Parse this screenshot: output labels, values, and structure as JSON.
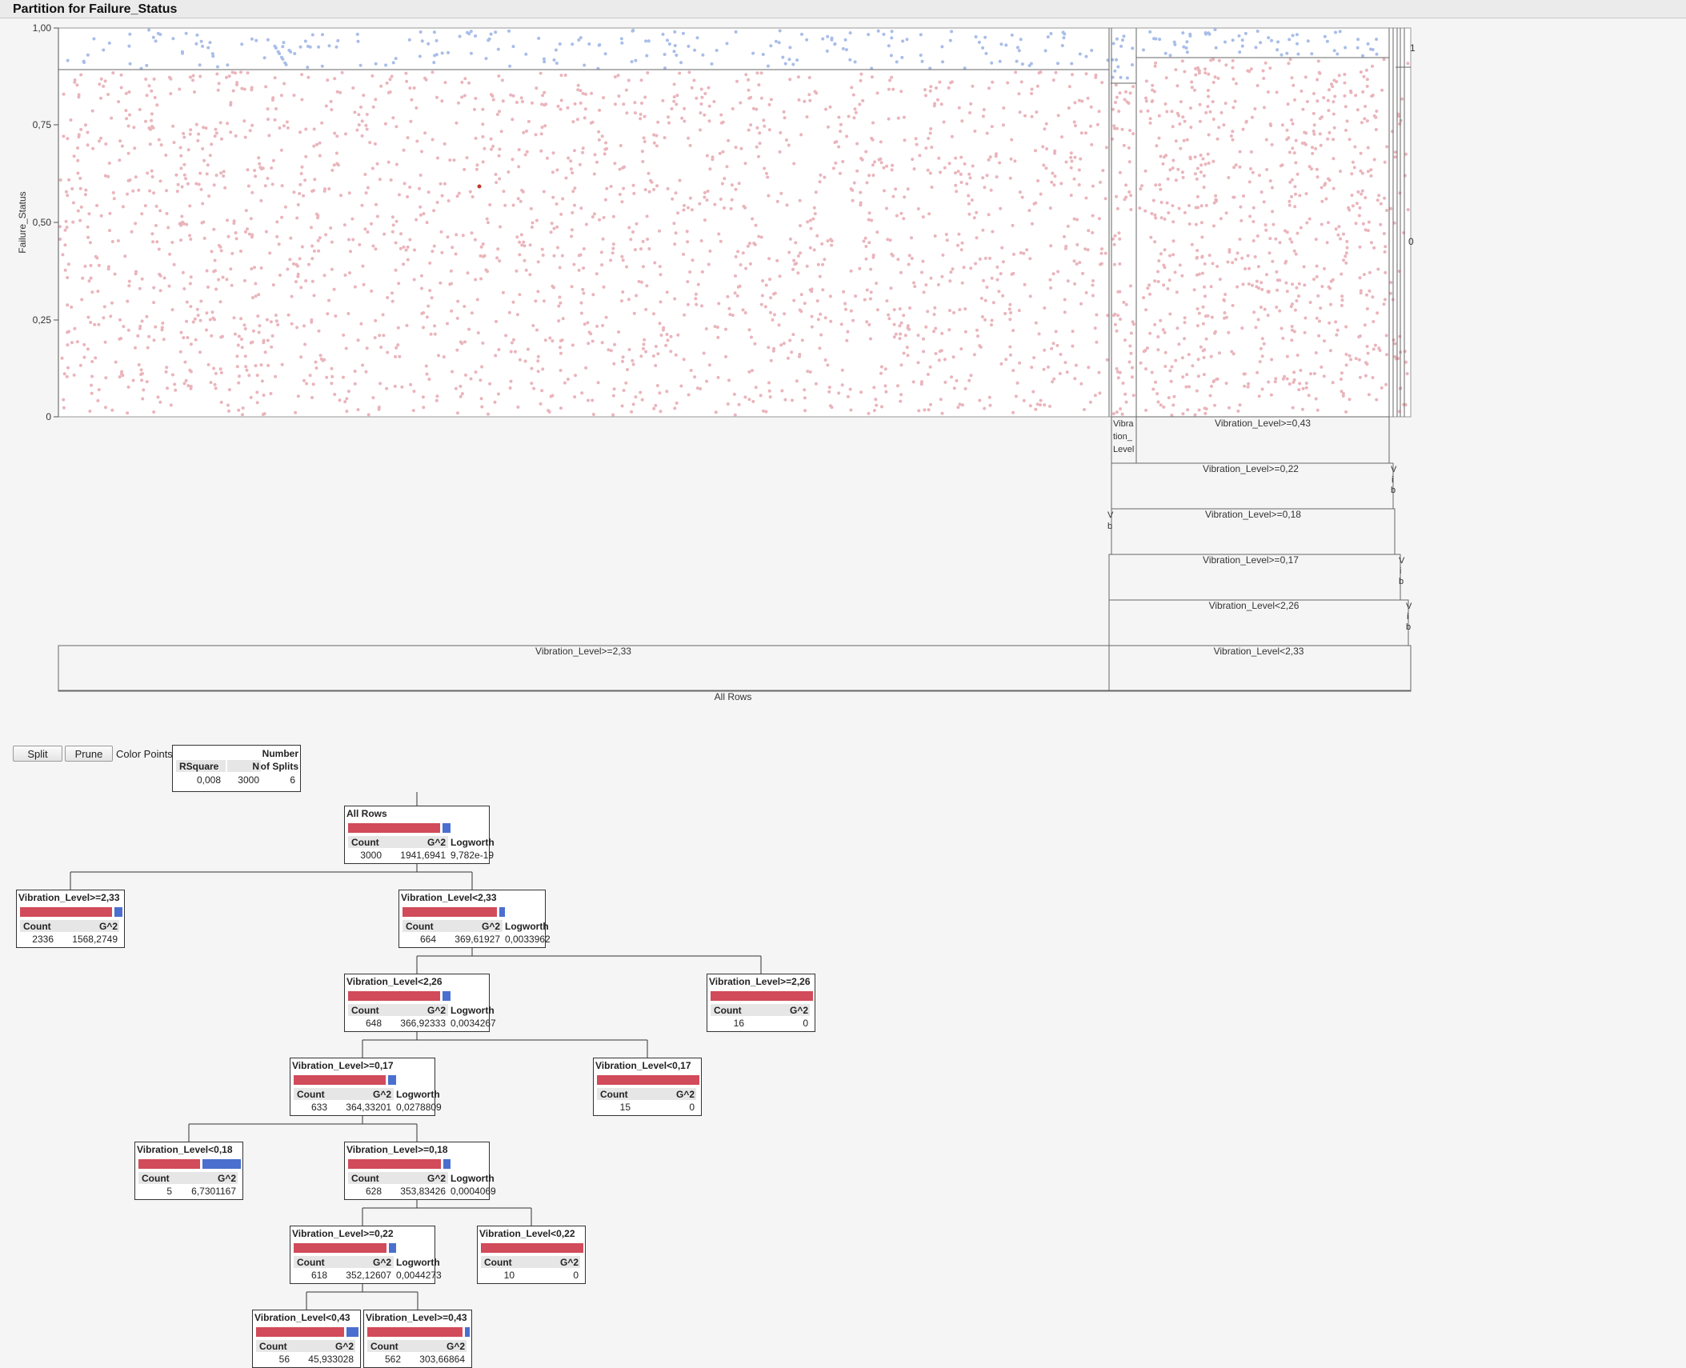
{
  "window": {
    "title": "Partition for Failure_Status"
  },
  "plot": {
    "ylabel": "Failure_Status",
    "yticks": [
      "1,00",
      "0,75",
      "0,50",
      "0,25",
      "0"
    ],
    "right_labels": [
      "1",
      "0"
    ],
    "split_labels": {
      "all": "All Rows",
      "ge233": "Vibration_Level>=2,33",
      "lt233": "Vibration_Level<2,33",
      "lt226": "Vibration_Level<2,26",
      "ge017": "Vibration_Level>=0,17",
      "ge018": "Vibration_Level>=0,18",
      "ge022": "Vibration_Level>=0,22",
      "ge043": "Vibration_Level>=0,43",
      "narrow_vibra": "Vibra",
      "narrow_tion": "tion_",
      "narrow_level": "Level",
      "v": "V",
      "i": "i",
      "b": "b"
    }
  },
  "controls": {
    "split": "Split",
    "prune": "Prune",
    "color_points": "Color Points"
  },
  "summary": {
    "headers": {
      "rsquare": "RSquare",
      "n": "N",
      "number": "Number",
      "of_splits": "of Splits"
    },
    "values": {
      "rsquare": "0,008",
      "n": "3000",
      "splits": "6"
    }
  },
  "tree": {
    "headers": {
      "count": "Count",
      "g2": "G^2",
      "logworth": "Logworth"
    },
    "colors": {
      "red": "#d24b5a",
      "blue": "#4a6fce"
    },
    "nodes": [
      {
        "title": "All Rows",
        "count": "3000",
        "g2": "1941,6941",
        "logworth": "9,782e-19",
        "red_frac": 0.9
      },
      {
        "title": "Vibration_Level>=2,33",
        "count": "2336",
        "g2": "1568,2749",
        "logworth": "",
        "red_frac": 0.9
      },
      {
        "title": "Vibration_Level<2,33",
        "count": "664",
        "g2": "369,61927",
        "logworth": "0,0033962",
        "red_frac": 0.92
      },
      {
        "title": "Vibration_Level<2,26",
        "count": "648",
        "g2": "366,92333",
        "logworth": "0,0034267",
        "red_frac": 0.9
      },
      {
        "title": "Vibration_Level>=2,26",
        "count": "16",
        "g2": "0",
        "logworth": "",
        "red_frac": 1.0
      },
      {
        "title": "Vibration_Level>=0,17",
        "count": "633",
        "g2": "364,33201",
        "logworth": "0,0278809",
        "red_frac": 0.9
      },
      {
        "title": "Vibration_Level<0,17",
        "count": "15",
        "g2": "0",
        "logworth": "",
        "red_frac": 1.0
      },
      {
        "title": "Vibration_Level<0,18",
        "count": "5",
        "g2": "6,7301167",
        "logworth": "",
        "red_frac": 0.6
      },
      {
        "title": "Vibration_Level>=0,18",
        "count": "628",
        "g2": "353,83426",
        "logworth": "0,0004069",
        "red_frac": 0.91
      },
      {
        "title": "Vibration_Level>=0,22",
        "count": "618",
        "g2": "352,12607",
        "logworth": "0,0044273",
        "red_frac": 0.91
      },
      {
        "title": "Vibration_Level<0,22",
        "count": "10",
        "g2": "0",
        "logworth": "",
        "red_frac": 1.0
      },
      {
        "title": "Vibration_Level<0,43",
        "count": "56",
        "g2": "45,933028",
        "logworth": "",
        "red_frac": 0.86
      },
      {
        "title": "Vibration_Level>=0,43",
        "count": "562",
        "g2": "303,66864",
        "logworth": "",
        "red_frac": 0.93
      }
    ]
  }
}
